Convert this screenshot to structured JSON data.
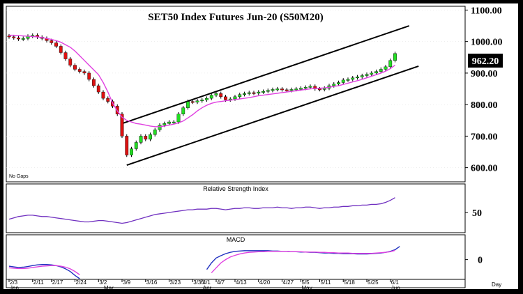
{
  "chart_data": {
    "type": "candlestick",
    "title": "SET50  Index  Futures  Jun-20  (S50M20)",
    "no_gaps_label": "No Gaps",
    "last_price_label": "962.20",
    "price_axis": {
      "ticks": [
        "1100.00",
        "1000.00",
        "900.00",
        "800.00",
        "700.00",
        "600.00"
      ],
      "ylim": [
        555,
        1112
      ]
    },
    "x_axis_label": "Day",
    "x_ticks": [
      {
        "label": "2/3",
        "i": 0
      },
      {
        "label": "2/11",
        "i": 5
      },
      {
        "label": "2/17",
        "i": 9
      },
      {
        "label": "2/24",
        "i": 14
      },
      {
        "label": "3/2",
        "i": 19
      },
      {
        "label": "3/9",
        "i": 24
      },
      {
        "label": "3/16",
        "i": 29
      },
      {
        "label": "3/23",
        "i": 34
      },
      {
        "label": "3/30",
        "i": 39
      },
      {
        "label": "4/1",
        "i": 41
      },
      {
        "label": "4/7",
        "i": 44
      },
      {
        "label": "4/13",
        "i": 48
      },
      {
        "label": "4/20",
        "i": 53
      },
      {
        "label": "4/27",
        "i": 58
      },
      {
        "label": "5/5",
        "i": 62
      },
      {
        "label": "5/11",
        "i": 66
      },
      {
        "label": "5/18",
        "i": 71
      },
      {
        "label": "5/25",
        "i": 76
      },
      {
        "label": "6/1",
        "i": 81
      },
      {
        "label": "Jun",
        "i": 81
      }
    ],
    "month_labels": [
      {
        "label": "Jan",
        "i": 0
      },
      {
        "label": "Mar",
        "i": 20
      },
      {
        "label": "Apr",
        "i": 41
      },
      {
        "label": "May",
        "i": 62
      }
    ],
    "closes": [
      1015,
      1012,
      1008,
      1010,
      1017,
      1020,
      1014,
      1010,
      1003,
      996,
      985,
      965,
      945,
      925,
      912,
      905,
      900,
      880,
      860,
      840,
      820,
      810,
      795,
      770,
      700,
      640,
      660,
      680,
      700,
      690,
      705,
      720,
      735,
      740,
      745,
      745,
      770,
      790,
      810,
      808,
      812,
      815,
      820,
      830,
      835,
      825,
      815,
      818,
      825,
      832,
      835,
      838,
      836,
      840,
      842,
      845,
      848,
      850,
      847,
      845,
      848,
      850,
      852,
      855,
      858,
      850,
      848,
      852,
      860,
      865,
      870,
      878,
      880,
      885,
      888,
      892,
      896,
      900,
      905,
      912,
      920,
      940,
      962
    ],
    "sma": [
      1020,
      1020,
      1019,
      1018,
      1017,
      1016,
      1015,
      1013,
      1010,
      1007,
      1003,
      998,
      990,
      982,
      970,
      955,
      940,
      925,
      910,
      895,
      870,
      840,
      805,
      780,
      760,
      750,
      745,
      740,
      738,
      735,
      732,
      730,
      730,
      732,
      735,
      738,
      742,
      748,
      758,
      768,
      780,
      790,
      798,
      804,
      808,
      810,
      812,
      814,
      816,
      818,
      820,
      822,
      825,
      828,
      830,
      832,
      834,
      836,
      838,
      840,
      842,
      844,
      846,
      848,
      850,
      851,
      852,
      853,
      855,
      858,
      860,
      864,
      868,
      872,
      876,
      880,
      885,
      890,
      895,
      900,
      906,
      914,
      925
    ],
    "channel": {
      "upper": {
        "start": {
          "i": 24,
          "v": 740
        },
        "end": {
          "i": 85,
          "v": 1050
        }
      },
      "lower": {
        "start": {
          "i": 25,
          "v": 608
        },
        "end": {
          "i": 87,
          "v": 922
        }
      }
    },
    "rsi": {
      "title": "Relative  Strength  Index",
      "tick": "50",
      "ylim": [
        20,
        80
      ],
      "values": [
        40,
        42,
        44,
        45,
        46,
        46,
        45,
        44,
        44,
        43,
        42,
        41,
        40,
        39,
        38,
        37,
        36,
        36,
        37,
        38,
        38,
        37,
        36,
        35,
        34,
        35,
        37,
        39,
        41,
        43,
        45,
        47,
        48,
        49,
        50,
        51,
        52,
        53,
        54,
        54,
        55,
        55,
        55,
        56,
        56,
        55,
        54,
        55,
        56,
        56,
        57,
        57,
        56,
        56,
        57,
        57,
        57,
        58,
        57,
        57,
        56,
        57,
        57,
        58,
        58,
        57,
        56,
        57,
        57,
        58,
        58,
        59,
        59,
        60,
        60,
        61,
        61,
        62,
        62,
        63,
        65,
        68,
        72
      ]
    },
    "macd": {
      "title": "MACD",
      "tick": "0",
      "ylim": [
        -60,
        50
      ],
      "macd_line": [
        -20,
        -22,
        -24,
        -23,
        -21,
        -18,
        -16,
        -15,
        -15,
        -16,
        -18,
        -22,
        -28,
        -36,
        -48,
        -60,
        null,
        null,
        null,
        null,
        null,
        null,
        null,
        null,
        null,
        null,
        null,
        null,
        null,
        null,
        null,
        null,
        null,
        null,
        null,
        null,
        null,
        null,
        null,
        null,
        null,
        null,
        -30,
        -10,
        5,
        12,
        18,
        22,
        25,
        26,
        27,
        27,
        27,
        27,
        27,
        27,
        26,
        26,
        25,
        25,
        24,
        24,
        23,
        23,
        22,
        22,
        21,
        20,
        20,
        19,
        19,
        18,
        18,
        18,
        17,
        17,
        17,
        18,
        19,
        20,
        22,
        25,
        30,
        40
      ],
      "signal_line": [
        -25,
        -26,
        -27,
        -27,
        -26,
        -24,
        -22,
        -20,
        -19,
        -18,
        -18,
        -20,
        -23,
        -28,
        -36,
        -46,
        null,
        null,
        null,
        null,
        null,
        null,
        null,
        null,
        null,
        null,
        null,
        null,
        null,
        null,
        null,
        null,
        null,
        null,
        null,
        null,
        null,
        null,
        null,
        null,
        null,
        null,
        null,
        -40,
        -25,
        -10,
        0,
        8,
        13,
        17,
        20,
        22,
        23,
        24,
        24,
        25,
        25,
        25,
        25,
        25,
        24,
        24,
        24,
        23,
        23,
        23,
        22,
        22,
        21,
        21,
        20,
        20,
        20,
        19,
        19,
        19,
        19,
        19,
        20,
        21,
        22,
        24,
        28
      ]
    }
  }
}
